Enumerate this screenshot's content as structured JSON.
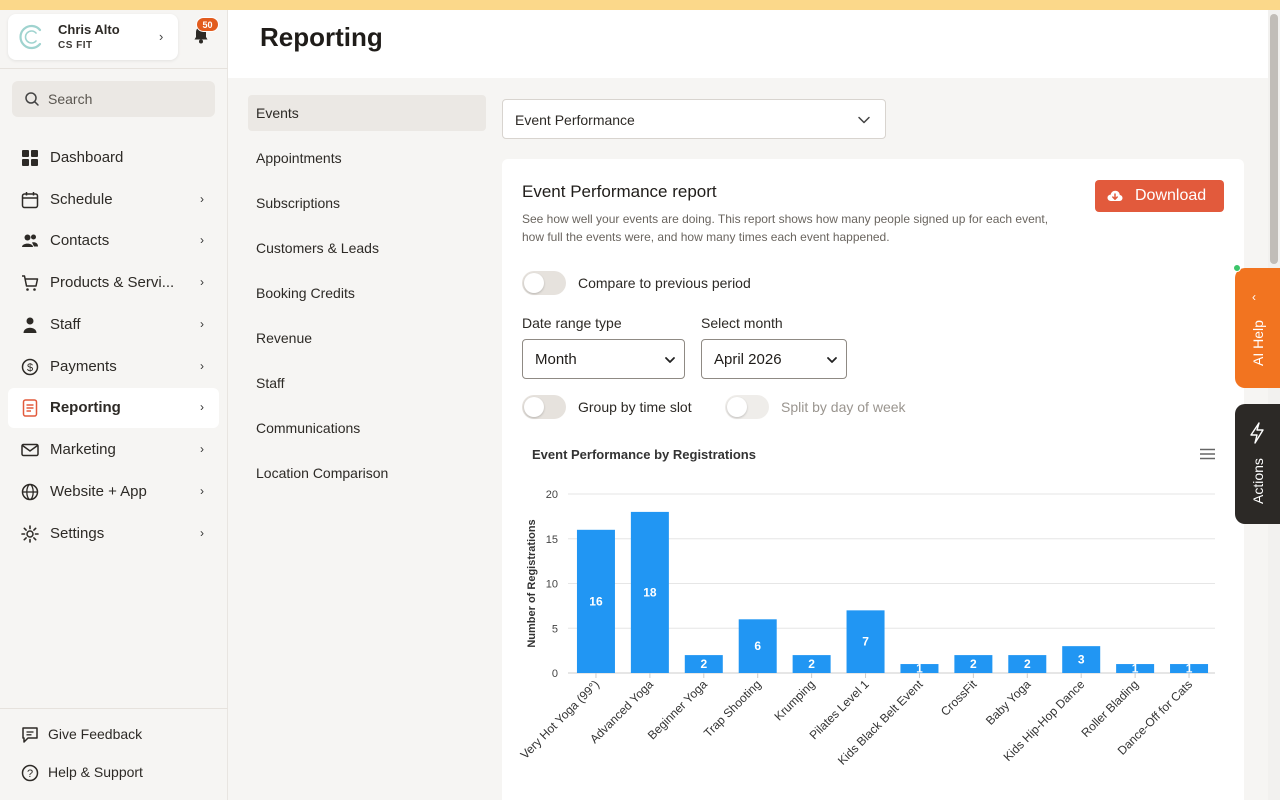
{
  "profile": {
    "name": "Chris Alto",
    "org": "CS FIT",
    "notification_count": "50"
  },
  "search": {
    "placeholder": "Search"
  },
  "sidebar": {
    "items": [
      {
        "label": "Dashboard",
        "icon": "dashboard-icon"
      },
      {
        "label": "Schedule",
        "icon": "calendar-icon"
      },
      {
        "label": "Contacts",
        "icon": "contacts-icon"
      },
      {
        "label": "Products & Servi...",
        "icon": "cart-icon"
      },
      {
        "label": "Staff",
        "icon": "person-icon"
      },
      {
        "label": "Payments",
        "icon": "dollar-icon"
      },
      {
        "label": "Reporting",
        "icon": "report-icon"
      },
      {
        "label": "Marketing",
        "icon": "mail-icon"
      },
      {
        "label": "Website + App",
        "icon": "globe-icon"
      },
      {
        "label": "Settings",
        "icon": "gear-icon"
      }
    ],
    "active": "Reporting",
    "give_feedback": "Give Feedback",
    "help_support": "Help & Support"
  },
  "header": {
    "title": "Reporting"
  },
  "subnav": {
    "items": [
      "Events",
      "Appointments",
      "Subscriptions",
      "Customers & Leads",
      "Booking Credits",
      "Revenue",
      "Staff",
      "Communications",
      "Location Comparison"
    ],
    "active": "Events"
  },
  "report_select": {
    "value": "Event Performance"
  },
  "report": {
    "title": "Event Performance report",
    "description": "See how well your events are doing. This report shows how many people signed up for each event, how full the events were, and how many times each event happened.",
    "download_label": "Download",
    "compare_label": "Compare to previous period",
    "date_range_label": "Date range type",
    "date_range_value": "Month",
    "month_label": "Select month",
    "month_value": "April 2026",
    "group_label": "Group by time slot",
    "split_label": "Split by day of week"
  },
  "right_tabs": {
    "ai_help": "AI Help",
    "actions": "Actions"
  },
  "colors": {
    "accent": "#e25a3c",
    "bar": "#2196f3",
    "ai_help": "#f27420",
    "actions": "#2c2926"
  },
  "chart_data": {
    "type": "bar",
    "title": "Event Performance by Registrations",
    "ylabel": "Number of Registrations",
    "xlabel": "",
    "ylim": [
      0,
      20
    ],
    "yticks": [
      0,
      5,
      10,
      15,
      20
    ],
    "grid": true,
    "categories": [
      "Very Hot Yoga (99°)",
      "Advanced Yoga",
      "Beginner Yoga",
      "Trap Shooting",
      "Krumping",
      "Pilates Level 1",
      "Kids Black Belt Event",
      "CrossFit",
      "Baby Yoga",
      "Kids Hip-Hop Dance",
      "Roller Blading",
      "Dance-Off for Cats"
    ],
    "values": [
      16,
      18,
      2,
      6,
      2,
      7,
      1,
      2,
      2,
      3,
      1,
      1
    ]
  }
}
